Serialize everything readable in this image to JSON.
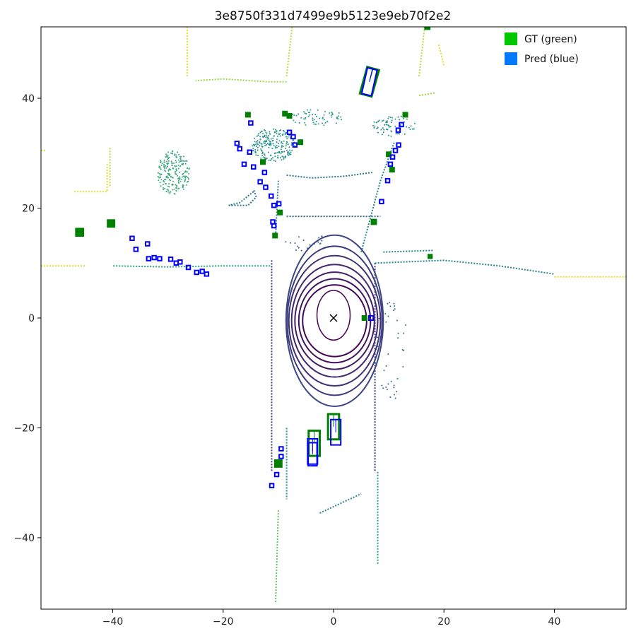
{
  "chart_data": {
    "type": "scatter",
    "title": "3e8750f331d7499e9b5123e9eb70f2e2",
    "xlabel": "",
    "ylabel": "",
    "xlim": [
      -53,
      53
    ],
    "ylim": [
      -53,
      53
    ],
    "x_ticks": [
      -40,
      -20,
      0,
      20,
      40
    ],
    "y_ticks": [
      -40,
      -20,
      0,
      20,
      40
    ],
    "grid": false,
    "legend": {
      "placement": "top-right",
      "entries": [
        {
          "label": "GT (green)",
          "color": "#00c800"
        },
        {
          "label": "Pred (blue)",
          "color": "#0078ff"
        }
      ]
    },
    "ego_marker": {
      "x": 0,
      "y": 0,
      "symbol": "x",
      "color": "#000000"
    },
    "colors": {
      "gt_box": "#008000",
      "pred_box": "#0000ff"
    },
    "gt_boxes": [
      {
        "x": 6.5,
        "y": 43.0,
        "w": 2.2,
        "l": 5.0,
        "yaw": 1.3
      },
      {
        "x": -15.5,
        "y": 37.0,
        "w": 0.9,
        "l": 0.9,
        "yaw": 0
      },
      {
        "x": -8.8,
        "y": 37.2,
        "w": 0.9,
        "l": 0.9,
        "yaw": 0
      },
      {
        "x": -8.0,
        "y": 36.8,
        "w": 0.9,
        "l": 0.9,
        "yaw": 0
      },
      {
        "x": 13.0,
        "y": 37.0,
        "w": 0.9,
        "l": 0.9,
        "yaw": 0
      },
      {
        "x": -6.0,
        "y": 32.0,
        "w": 0.9,
        "l": 0.9,
        "yaw": 0
      },
      {
        "x": -12.8,
        "y": 28.4,
        "w": 0.9,
        "l": 0.9,
        "yaw": 0
      },
      {
        "x": 10.0,
        "y": 29.8,
        "w": 0.9,
        "l": 0.9,
        "yaw": 0
      },
      {
        "x": 10.6,
        "y": 27.0,
        "w": 0.9,
        "l": 0.9,
        "yaw": 0
      },
      {
        "x": -9.7,
        "y": 19.2,
        "w": 0.9,
        "l": 0.9,
        "yaw": 0
      },
      {
        "x": 7.3,
        "y": 17.5,
        "w": 1.0,
        "l": 1.0,
        "yaw": 0
      },
      {
        "x": -46.0,
        "y": 15.6,
        "w": 1.1,
        "l": 1.5,
        "yaw": 0
      },
      {
        "x": -40.3,
        "y": 17.2,
        "w": 1.1,
        "l": 1.4,
        "yaw": 0
      },
      {
        "x": -10.6,
        "y": 15.0,
        "w": 0.9,
        "l": 0.9,
        "yaw": 0
      },
      {
        "x": 17.5,
        "y": 11.2,
        "w": 0.8,
        "l": 0.8,
        "yaw": 0
      },
      {
        "x": 5.6,
        "y": 0.0,
        "w": 0.9,
        "l": 0.9,
        "yaw": 0
      },
      {
        "x": 0.0,
        "y": -19.8,
        "w": 2.0,
        "l": 4.6,
        "yaw": 1.5708
      },
      {
        "x": -3.5,
        "y": -22.8,
        "w": 2.0,
        "l": 4.6,
        "yaw": 1.5708
      },
      {
        "x": -10.0,
        "y": -26.5,
        "w": 1.0,
        "l": 1.4,
        "yaw": 0
      },
      {
        "x": 17.0,
        "y": 53.0,
        "w": 1.0,
        "l": 1.0,
        "yaw": 0
      }
    ],
    "pred_boxes": [
      {
        "x": 6.5,
        "y": 43.0,
        "w": 1.8,
        "l": 4.8,
        "yaw": 1.35
      },
      {
        "x": -15.0,
        "y": 35.5,
        "w": 0.7,
        "l": 0.7,
        "yaw": 0
      },
      {
        "x": -8.0,
        "y": 33.8,
        "w": 0.7,
        "l": 0.7,
        "yaw": 0
      },
      {
        "x": -7.3,
        "y": 33.0,
        "w": 0.7,
        "l": 0.7,
        "yaw": 0
      },
      {
        "x": -7.0,
        "y": 31.5,
        "w": 0.7,
        "l": 0.7,
        "yaw": 0
      },
      {
        "x": 12.3,
        "y": 35.2,
        "w": 0.7,
        "l": 0.7,
        "yaw": 0
      },
      {
        "x": 11.7,
        "y": 34.2,
        "w": 0.7,
        "l": 0.7,
        "yaw": 0
      },
      {
        "x": -17.5,
        "y": 31.8,
        "w": 0.7,
        "l": 0.7,
        "yaw": 0
      },
      {
        "x": -17.0,
        "y": 30.8,
        "w": 0.7,
        "l": 0.7,
        "yaw": 0
      },
      {
        "x": -15.2,
        "y": 30.2,
        "w": 0.7,
        "l": 0.7,
        "yaw": 0
      },
      {
        "x": -16.2,
        "y": 28.0,
        "w": 0.7,
        "l": 0.7,
        "yaw": 0
      },
      {
        "x": -14.5,
        "y": 27.5,
        "w": 0.7,
        "l": 0.7,
        "yaw": 0
      },
      {
        "x": -12.5,
        "y": 26.5,
        "w": 0.7,
        "l": 0.7,
        "yaw": 0
      },
      {
        "x": 11.8,
        "y": 31.5,
        "w": 0.7,
        "l": 0.7,
        "yaw": 0
      },
      {
        "x": 11.2,
        "y": 30.5,
        "w": 0.7,
        "l": 0.7,
        "yaw": 0
      },
      {
        "x": 10.7,
        "y": 29.3,
        "w": 0.7,
        "l": 0.7,
        "yaw": 0
      },
      {
        "x": 10.3,
        "y": 28.0,
        "w": 0.7,
        "l": 0.7,
        "yaw": 0
      },
      {
        "x": 9.8,
        "y": 25.0,
        "w": 0.7,
        "l": 0.7,
        "yaw": 0
      },
      {
        "x": 8.7,
        "y": 21.2,
        "w": 0.7,
        "l": 0.7,
        "yaw": 0
      },
      {
        "x": -13.3,
        "y": 24.8,
        "w": 0.7,
        "l": 0.7,
        "yaw": 0
      },
      {
        "x": -12.3,
        "y": 23.8,
        "w": 0.7,
        "l": 0.7,
        "yaw": 0
      },
      {
        "x": -11.3,
        "y": 22.2,
        "w": 0.7,
        "l": 0.7,
        "yaw": 0
      },
      {
        "x": -10.8,
        "y": 20.5,
        "w": 0.7,
        "l": 0.7,
        "yaw": 0
      },
      {
        "x": -9.9,
        "y": 20.8,
        "w": 0.7,
        "l": 0.7,
        "yaw": 0
      },
      {
        "x": -11.0,
        "y": 17.5,
        "w": 0.7,
        "l": 0.7,
        "yaw": 0
      },
      {
        "x": -10.8,
        "y": 16.8,
        "w": 0.7,
        "l": 0.7,
        "yaw": 0
      },
      {
        "x": -36.5,
        "y": 14.5,
        "w": 0.7,
        "l": 0.7,
        "yaw": 0
      },
      {
        "x": -33.7,
        "y": 13.5,
        "w": 0.7,
        "l": 0.7,
        "yaw": 0
      },
      {
        "x": -35.8,
        "y": 12.5,
        "w": 0.7,
        "l": 0.7,
        "yaw": 0
      },
      {
        "x": -33.5,
        "y": 10.8,
        "w": 0.7,
        "l": 0.7,
        "yaw": 0
      },
      {
        "x": -32.5,
        "y": 11.0,
        "w": 0.7,
        "l": 0.7,
        "yaw": 0
      },
      {
        "x": -31.5,
        "y": 10.8,
        "w": 0.7,
        "l": 0.7,
        "yaw": 0
      },
      {
        "x": -29.5,
        "y": 10.7,
        "w": 0.7,
        "l": 0.7,
        "yaw": 0
      },
      {
        "x": -28.5,
        "y": 10.0,
        "w": 0.7,
        "l": 0.7,
        "yaw": 0
      },
      {
        "x": -27.8,
        "y": 10.2,
        "w": 0.7,
        "l": 0.7,
        "yaw": 0
      },
      {
        "x": -26.3,
        "y": 9.2,
        "w": 0.7,
        "l": 0.7,
        "yaw": 0
      },
      {
        "x": -24.8,
        "y": 8.3,
        "w": 0.7,
        "l": 0.7,
        "yaw": 0
      },
      {
        "x": -23.8,
        "y": 8.5,
        "w": 0.7,
        "l": 0.7,
        "yaw": 0
      },
      {
        "x": -23.0,
        "y": 8.0,
        "w": 0.7,
        "l": 0.7,
        "yaw": 0
      },
      {
        "x": 6.8,
        "y": 0.0,
        "w": 0.8,
        "l": 0.8,
        "yaw": 0
      },
      {
        "x": 0.4,
        "y": -20.8,
        "w": 1.8,
        "l": 4.6,
        "yaw": 1.5708
      },
      {
        "x": -3.8,
        "y": -24.3,
        "w": 1.8,
        "l": 4.6,
        "yaw": 1.5708
      },
      {
        "x": -3.8,
        "y": -24.8,
        "w": 1.6,
        "l": 4.2,
        "yaw": 1.5708
      },
      {
        "x": -9.5,
        "y": -23.8,
        "w": 0.7,
        "l": 0.7,
        "yaw": 0
      },
      {
        "x": -9.5,
        "y": -25.2,
        "w": 0.7,
        "l": 0.7,
        "yaw": 0
      },
      {
        "x": -10.3,
        "y": -28.5,
        "w": 0.7,
        "l": 0.7,
        "yaw": 0
      },
      {
        "x": -11.2,
        "y": -30.5,
        "w": 0.7,
        "l": 0.7,
        "yaw": 0
      }
    ],
    "point_cloud": {
      "colormap": [
        "#440154",
        "#3b528b",
        "#21918c",
        "#5ec962",
        "#fde725"
      ],
      "rings": [
        {
          "cx": 0.2,
          "cy": -0.5,
          "rx": 5.8,
          "ry": 6.5
        },
        {
          "cx": 0.2,
          "cy": -0.5,
          "rx": 6.5,
          "ry": 7.6
        },
        {
          "cx": 0.2,
          "cy": -0.5,
          "rx": 7.2,
          "ry": 8.8
        },
        {
          "cx": 0.2,
          "cy": -0.5,
          "rx": 7.8,
          "ry": 10.2
        },
        {
          "cx": 0.2,
          "cy": -0.5,
          "rx": 8.3,
          "ry": 11.8
        },
        {
          "cx": 0.2,
          "cy": -0.5,
          "rx": 8.6,
          "ry": 13.5
        },
        {
          "cx": 0.2,
          "cy": -0.5,
          "rx": 8.8,
          "ry": 15.5
        }
      ],
      "blob": {
        "cx": 0.0,
        "cy": 0.5,
        "rx": 3.0,
        "ry": 4.5
      },
      "lines": [
        {
          "pts": [
            [
              -8.5,
              18.5
            ],
            [
              8.5,
              18.5
            ]
          ],
          "c": 0.35
        },
        {
          "pts": [
            [
              -11.2,
              10.5
            ],
            [
              -11.2,
              -28.0
            ]
          ],
          "c": 0.2
        },
        {
          "pts": [
            [
              7.5,
              10.0
            ],
            [
              7.5,
              -28.0
            ]
          ],
          "c": 0.2
        },
        {
          "pts": [
            [
              -8.5,
              26.0
            ],
            [
              -4.0,
              25.5
            ],
            [
              2.0,
              25.8
            ],
            [
              7.0,
              26.5
            ]
          ],
          "c": 0.4
        },
        {
          "pts": [
            [
              7.5,
              10.0
            ],
            [
              20.0,
              10.5
            ],
            [
              30.0,
              9.5
            ],
            [
              40.0,
              8.0
            ]
          ],
          "c": 0.45
        },
        {
          "pts": [
            [
              9.0,
              12.0
            ],
            [
              18.0,
              12.3
            ]
          ],
          "c": 0.45
        },
        {
          "pts": [
            [
              -11.5,
              9.5
            ],
            [
              -20.0,
              9.5
            ],
            [
              -30.0,
              9.3
            ],
            [
              -40.0,
              9.5
            ]
          ],
          "c": 0.55
        },
        {
          "pts": [
            [
              -10.5,
              15.0
            ],
            [
              -10.0,
              25.0
            ]
          ],
          "c": 0.45
        },
        {
          "pts": [
            [
              5.0,
              12.0
            ],
            [
              8.5,
              25.0
            ],
            [
              11.0,
              32.0
            ]
          ],
          "c": 0.45
        },
        {
          "pts": [
            [
              -14.5,
              23.0
            ],
            [
              -17.0,
              21.0
            ],
            [
              -19.0,
              20.5
            ]
          ],
          "c": 0.4
        },
        {
          "pts": [
            [
              -19.0,
              20.5
            ],
            [
              -15.5,
              20.5
            ],
            [
              -14.0,
              22.0
            ],
            [
              -14.5,
              23.5
            ]
          ],
          "c": 0.4
        },
        {
          "pts": [
            [
              -8.5,
              -20.0
            ],
            [
              -8.5,
              -33.0
            ]
          ],
          "c": 0.5
        },
        {
          "pts": [
            [
              -2.5,
              -35.5
            ],
            [
              5.0,
              -32.0
            ]
          ],
          "c": 0.45
        },
        {
          "pts": [
            [
              8.0,
              -28.0
            ],
            [
              8.0,
              -45.0
            ]
          ],
          "c": 0.55
        },
        {
          "pts": [
            [
              -10.0,
              -35.0
            ],
            [
              -10.5,
              -52.0
            ]
          ],
          "c": 0.75
        },
        {
          "pts": [
            [
              -8.5,
              43.0
            ],
            [
              -12.0,
              43.0
            ],
            [
              -20.0,
              43.5
            ],
            [
              -25.0,
              43.2
            ]
          ],
          "c": 0.85
        },
        {
          "pts": [
            [
              -8.5,
              44.0
            ],
            [
              -7.5,
              53.0
            ]
          ],
          "c": 0.9
        },
        {
          "pts": [
            [
              15.5,
              40.5
            ],
            [
              18.5,
              41.0
            ]
          ],
          "c": 0.85
        },
        {
          "pts": [
            [
              15.5,
              44.0
            ],
            [
              16.5,
              53.0
            ]
          ],
          "c": 0.9
        },
        {
          "pts": [
            [
              -53.0,
              9.5
            ],
            [
              -45.0,
              9.5
            ]
          ],
          "c": 0.95
        },
        {
          "pts": [
            [
              -47.0,
              23.0
            ],
            [
              -41.0,
              23.0
            ],
            [
              -41.0,
              28.0
            ]
          ],
          "c": 0.95
        },
        {
          "pts": [
            [
              -40.5,
              24.0
            ],
            [
              -40.5,
              31.0
            ]
          ],
          "c": 0.9
        },
        {
          "pts": [
            [
              -53.0,
              30.5
            ],
            [
              -52.0,
              30.5
            ]
          ],
          "c": 0.95
        },
        {
          "pts": [
            [
              -26.5,
              53.0
            ],
            [
              -26.5,
              44.0
            ]
          ],
          "c": 0.95
        },
        {
          "pts": [
            [
              40.0,
              7.5
            ],
            [
              53.0,
              7.5
            ]
          ],
          "c": 0.95
        },
        {
          "pts": [
            [
              20.0,
              46.0
            ],
            [
              19.0,
              50.0
            ]
          ],
          "c": 0.95
        }
      ],
      "clusters": [
        {
          "cx": -29.0,
          "cy": 26.5,
          "rx": 3.0,
          "ry": 4.0,
          "n": 220,
          "c": 0.6
        },
        {
          "cx": -11.0,
          "cy": 31.5,
          "rx": 4.0,
          "ry": 3.0,
          "n": 220,
          "c": 0.5
        },
        {
          "cx": -3.0,
          "cy": 36.5,
          "rx": 5.0,
          "ry": 1.5,
          "n": 60,
          "c": 0.55
        },
        {
          "cx": 11.0,
          "cy": 35.0,
          "rx": 4.0,
          "ry": 2.0,
          "n": 70,
          "c": 0.5
        },
        {
          "cx": 10.5,
          "cy": -6.0,
          "rx": 3.0,
          "ry": 9.0,
          "n": 40,
          "c": 0.35
        },
        {
          "cx": -5.0,
          "cy": 14.0,
          "rx": 4.0,
          "ry": 2.0,
          "n": 20,
          "c": 0.3
        }
      ]
    }
  }
}
